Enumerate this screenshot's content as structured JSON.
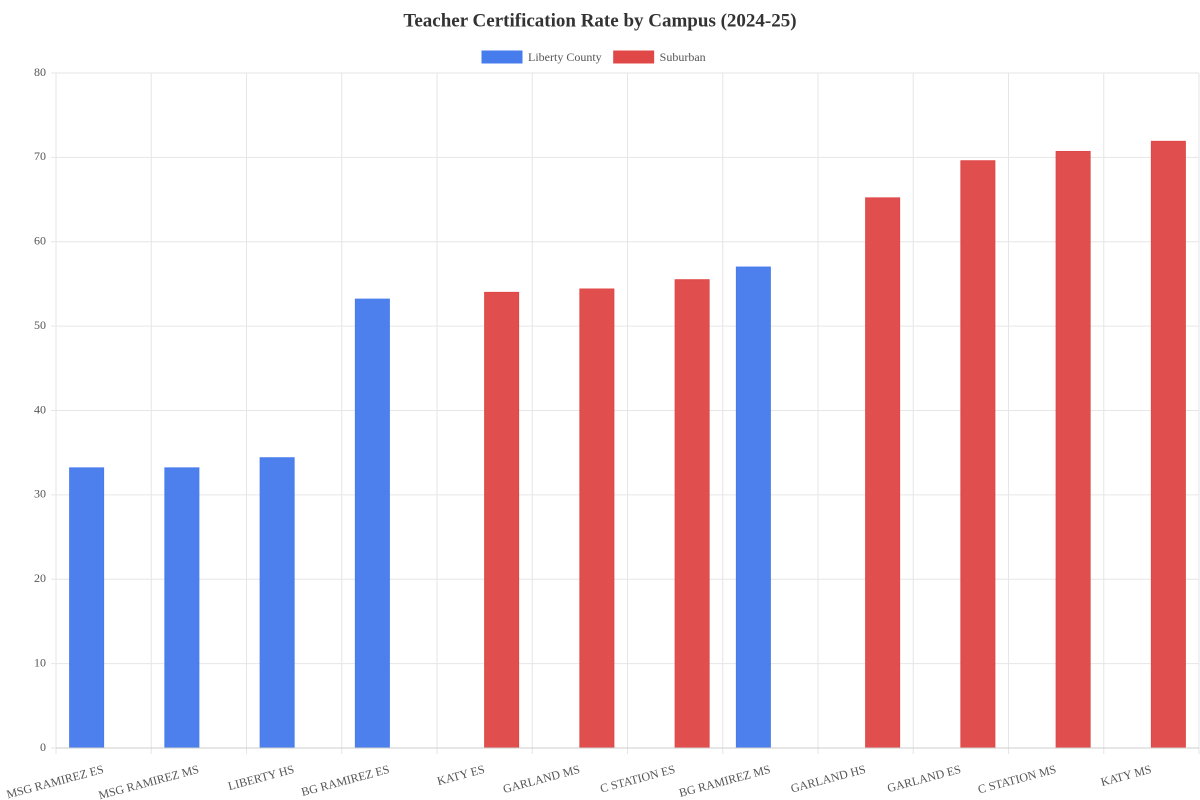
{
  "chart_data": {
    "type": "bar",
    "title": "Teacher Certification Rate by Campus (2024-25)",
    "categories": [
      "MSG RAMIREZ ES",
      "MSG RAMIREZ MS",
      "LIBERTY HS",
      "BG RAMIREZ ES",
      "KATY ES",
      "GARLAND MS",
      "C STATION ES",
      "BG RAMIREZ MS",
      "GARLAND HS",
      "GARLAND ES",
      "C STATION MS",
      "KATY MS"
    ],
    "series": [
      {
        "name": "Liberty County",
        "color": "#477cec",
        "values": [
          33.2,
          33.2,
          34.4,
          53.2,
          null,
          null,
          null,
          57.0,
          null,
          null,
          null,
          null
        ]
      },
      {
        "name": "Suburban",
        "color": "#e04848",
        "values": [
          null,
          null,
          null,
          null,
          54.0,
          54.4,
          55.5,
          null,
          65.2,
          69.6,
          70.7,
          71.9
        ]
      }
    ],
    "ylim": [
      0,
      80
    ],
    "yticks": [
      0,
      10,
      20,
      30,
      40,
      50,
      60,
      70,
      80
    ],
    "grid": true,
    "legend": "top"
  }
}
